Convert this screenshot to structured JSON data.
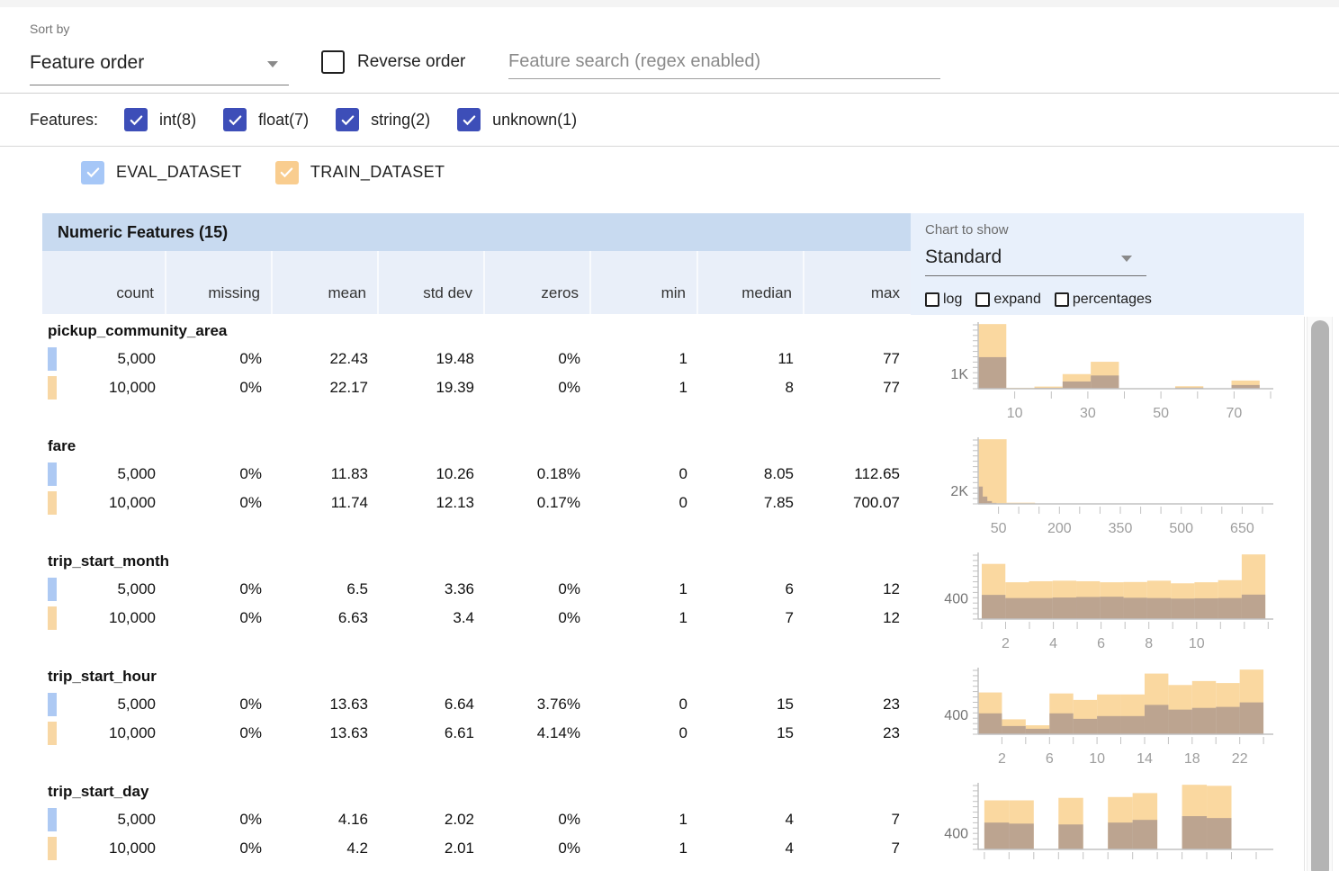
{
  "toolbar": {
    "sort_by_label": "Sort by",
    "sort_by_value": "Feature order",
    "reverse_order_label": "Reverse order",
    "search_placeholder": "Feature search (regex enabled)"
  },
  "features_filter": {
    "label": "Features:",
    "checkbox_color": "#3d4eb8",
    "checkboxes": [
      {
        "label": "int(8)",
        "checked": true
      },
      {
        "label": "float(7)",
        "checked": true
      },
      {
        "label": "string(2)",
        "checked": true
      },
      {
        "label": "unknown(1)",
        "checked": true
      }
    ]
  },
  "datasets": [
    {
      "name": "EVAL_DATASET",
      "checked": true,
      "checkbox_color": "#a6c7f7",
      "tab_color": "#adc9f3"
    },
    {
      "name": "TRAIN_DATASET",
      "checked": true,
      "checkbox_color": "#f9cd8f",
      "tab_color": "#f8d7a4"
    }
  ],
  "table": {
    "title": "Numeric Features (15)",
    "columns": [
      "count",
      "missing",
      "mean",
      "std dev",
      "zeros",
      "min",
      "median",
      "max"
    ],
    "features": [
      {
        "name": "pickup_community_area",
        "rows": [
          {
            "dataset": "EVAL_DATASET",
            "values": [
              "5,000",
              "0%",
              "22.43",
              "19.48",
              "0%",
              "1",
              "11",
              "77"
            ]
          },
          {
            "dataset": "TRAIN_DATASET",
            "values": [
              "10,000",
              "0%",
              "22.17",
              "19.39",
              "0%",
              "1",
              "8",
              "77"
            ]
          }
        ]
      },
      {
        "name": "fare",
        "rows": [
          {
            "dataset": "EVAL_DATASET",
            "values": [
              "5,000",
              "0%",
              "11.83",
              "10.26",
              "0.18%",
              "0",
              "8.05",
              "112.65"
            ]
          },
          {
            "dataset": "TRAIN_DATASET",
            "values": [
              "10,000",
              "0%",
              "11.74",
              "12.13",
              "0.17%",
              "0",
              "7.85",
              "700.07"
            ]
          }
        ]
      },
      {
        "name": "trip_start_month",
        "rows": [
          {
            "dataset": "EVAL_DATASET",
            "values": [
              "5,000",
              "0%",
              "6.5",
              "3.36",
              "0%",
              "1",
              "6",
              "12"
            ]
          },
          {
            "dataset": "TRAIN_DATASET",
            "values": [
              "10,000",
              "0%",
              "6.63",
              "3.4",
              "0%",
              "1",
              "7",
              "12"
            ]
          }
        ]
      },
      {
        "name": "trip_start_hour",
        "rows": [
          {
            "dataset": "EVAL_DATASET",
            "values": [
              "5,000",
              "0%",
              "13.63",
              "6.64",
              "3.76%",
              "0",
              "15",
              "23"
            ]
          },
          {
            "dataset": "TRAIN_DATASET",
            "values": [
              "10,000",
              "0%",
              "13.63",
              "6.61",
              "4.14%",
              "0",
              "15",
              "23"
            ]
          }
        ]
      },
      {
        "name": "trip_start_day",
        "rows": [
          {
            "dataset": "EVAL_DATASET",
            "values": [
              "5,000",
              "0%",
              "4.16",
              "2.02",
              "0%",
              "1",
              "4",
              "7"
            ]
          },
          {
            "dataset": "TRAIN_DATASET",
            "values": [
              "10,000",
              "0%",
              "4.2",
              "2.01",
              "0%",
              "1",
              "4",
              "7"
            ]
          }
        ]
      }
    ]
  },
  "chart_controls": {
    "label": "Chart to show",
    "value": "Standard",
    "options": [
      {
        "label": "log",
        "checked": false
      },
      {
        "label": "expand",
        "checked": false
      },
      {
        "label": "percentages",
        "checked": false
      }
    ]
  },
  "chart_data": [
    {
      "type": "histogram",
      "feature": "pickup_community_area",
      "x_range": [
        0,
        80
      ],
      "x_minor_start": 10,
      "x_minor_step": 10,
      "x_tick_labels": [
        10,
        30,
        50,
        70
      ],
      "y_axis_label": "1K",
      "y_label_value": 1000,
      "series": [
        {
          "name": "TRAIN_DATASET",
          "color": "#fad8a0",
          "bins": [
            [
              0,
              7.7,
              4200
            ],
            [
              7.7,
              15.4,
              60
            ],
            [
              15.4,
              23.1,
              140
            ],
            [
              23.1,
              30.8,
              950
            ],
            [
              30.8,
              38.5,
              1750
            ],
            [
              38.5,
              46.2,
              30
            ],
            [
              46.2,
              53.9,
              30
            ],
            [
              53.9,
              61.6,
              160
            ],
            [
              61.6,
              69.3,
              20
            ],
            [
              69.3,
              77,
              530
            ]
          ]
        },
        {
          "name": "EVAL_DATASET",
          "color": "rgba(113,103,125,0.45)",
          "bins": [
            [
              0,
              7.7,
              2050
            ],
            [
              7.7,
              15.4,
              25
            ],
            [
              15.4,
              23.1,
              60
            ],
            [
              23.1,
              30.8,
              470
            ],
            [
              30.8,
              38.5,
              860
            ],
            [
              38.5,
              46.2,
              12
            ],
            [
              46.2,
              53.9,
              12
            ],
            [
              53.9,
              61.6,
              70
            ],
            [
              61.6,
              69.3,
              8
            ],
            [
              69.3,
              77,
              240
            ]
          ]
        }
      ]
    },
    {
      "type": "histogram",
      "feature": "fare",
      "x_range": [
        0,
        720
      ],
      "x_minor_start": 50,
      "x_minor_step": 50,
      "x_tick_labels": [
        50,
        200,
        350,
        500,
        650
      ],
      "y_axis_label": "2K",
      "y_label_value": 2000,
      "series": [
        {
          "name": "TRAIN_DATASET",
          "color": "#fad8a0",
          "bins": [
            [
              0,
              70,
              9700
            ],
            [
              70,
              140,
              180
            ],
            [
              140,
              210,
              60
            ],
            [
              210,
              280,
              25
            ],
            [
              280,
              350,
              12
            ],
            [
              350,
              420,
              6
            ],
            [
              420,
              490,
              3
            ],
            [
              490,
              560,
              2
            ],
            [
              560,
              630,
              1
            ],
            [
              630,
              700,
              1
            ]
          ]
        },
        {
          "name": "EVAL_DATASET",
          "color": "rgba(113,103,125,0.45)",
          "bins": [
            [
              0,
              11.3,
              2600
            ],
            [
              11.3,
              22.6,
              1100
            ],
            [
              22.6,
              33.9,
              420
            ],
            [
              33.9,
              45.2,
              150
            ],
            [
              45.2,
              56.5,
              60
            ],
            [
              56.5,
              67.8,
              25
            ],
            [
              67.8,
              79.1,
              10
            ],
            [
              79.1,
              90.4,
              5
            ],
            [
              90.4,
              101.7,
              2
            ],
            [
              101.7,
              113,
              1
            ]
          ]
        }
      ]
    },
    {
      "type": "histogram",
      "feature": "trip_start_month",
      "x_range": [
        0.85,
        13.1
      ],
      "x_minor_start": 1,
      "x_minor_step": 1,
      "x_tick_labels": [
        2,
        4,
        6,
        8,
        10
      ],
      "y_axis_label": "400",
      "y_label_value": 400,
      "series": [
        {
          "name": "TRAIN_DATASET",
          "color": "#fad8a0",
          "bins": [
            [
              1,
              1.99,
              1050
            ],
            [
              1.99,
              2.98,
              700
            ],
            [
              2.98,
              3.97,
              720
            ],
            [
              3.97,
              4.96,
              730
            ],
            [
              4.96,
              5.95,
              720
            ],
            [
              5.95,
              6.94,
              700
            ],
            [
              6.94,
              7.93,
              705
            ],
            [
              7.93,
              8.92,
              730
            ],
            [
              8.92,
              9.91,
              680
            ],
            [
              9.91,
              10.9,
              700
            ],
            [
              10.9,
              11.89,
              740
            ],
            [
              11.89,
              12.88,
              1230
            ]
          ]
        },
        {
          "name": "EVAL_DATASET",
          "color": "rgba(113,103,125,0.45)",
          "bins": [
            [
              1,
              1.99,
              460
            ],
            [
              1.99,
              2.98,
              400
            ],
            [
              2.98,
              3.97,
              400
            ],
            [
              3.97,
              4.96,
              410
            ],
            [
              4.96,
              5.95,
              420
            ],
            [
              5.95,
              6.94,
              425
            ],
            [
              6.94,
              7.93,
              405
            ],
            [
              7.93,
              8.92,
              400
            ],
            [
              8.92,
              9.91,
              390
            ],
            [
              9.91,
              10.9,
              395
            ],
            [
              10.9,
              11.89,
              400
            ],
            [
              11.89,
              12.88,
              465
            ]
          ]
        }
      ]
    },
    {
      "type": "histogram",
      "feature": "trip_start_hour",
      "x_range": [
        0,
        24.6
      ],
      "x_minor_start": 2,
      "x_minor_step": 2,
      "x_tick_labels": [
        2,
        6,
        10,
        14,
        18,
        22
      ],
      "y_axis_label": "400",
      "y_label_value": 400,
      "series": [
        {
          "name": "TRAIN_DATASET",
          "color": "#fad8a0",
          "bins": [
            [
              0,
              2,
              840
            ],
            [
              2,
              4,
              300
            ],
            [
              4,
              6,
              180
            ],
            [
              6,
              8,
              820
            ],
            [
              8,
              10,
              690
            ],
            [
              10,
              12,
              800
            ],
            [
              12,
              14,
              800
            ],
            [
              14,
              16,
              1220
            ],
            [
              16,
              18,
              990
            ],
            [
              18,
              20,
              1070
            ],
            [
              20,
              22,
              1030
            ],
            [
              22,
              24,
              1300
            ]
          ]
        },
        {
          "name": "EVAL_DATASET",
          "color": "rgba(113,103,125,0.45)",
          "bins": [
            [
              0,
              2,
              420
            ],
            [
              2,
              4,
              165
            ],
            [
              4,
              6,
              110
            ],
            [
              6,
              8,
              420
            ],
            [
              8,
              10,
              310
            ],
            [
              10,
              12,
              365
            ],
            [
              12,
              14,
              365
            ],
            [
              14,
              16,
              590
            ],
            [
              16,
              18,
              495
            ],
            [
              18,
              20,
              530
            ],
            [
              20,
              22,
              550
            ],
            [
              22,
              24,
              640
            ]
          ]
        }
      ]
    },
    {
      "type": "histogram",
      "feature": "trip_start_day",
      "x_range": [
        0.85,
        7.95
      ],
      "x_minor_start": 1,
      "x_minor_step": 0.6,
      "x_tick_labels": [],
      "y_axis_label": "400",
      "y_label_value": 400,
      "series": [
        {
          "name": "TRAIN_DATASET",
          "color": "#fad8a0",
          "bins": [
            [
              1,
              1.6,
              1180
            ],
            [
              1.6,
              2.2,
              1180
            ],
            [
              2.8,
              3.4,
              1240
            ],
            [
              4,
              4.6,
              1260
            ],
            [
              4.6,
              5.2,
              1355
            ],
            [
              5.8,
              6.4,
              1555
            ],
            [
              6.4,
              7,
              1530
            ]
          ]
        },
        {
          "name": "EVAL_DATASET",
          "color": "rgba(113,103,125,0.45)",
          "bins": [
            [
              1,
              1.6,
              645
            ],
            [
              1.6,
              2.2,
              620
            ],
            [
              2.8,
              3.4,
              600
            ],
            [
              4,
              4.6,
              645
            ],
            [
              4.6,
              5.2,
              710
            ],
            [
              5.8,
              6.4,
              800
            ],
            [
              6.4,
              7,
              755
            ]
          ]
        }
      ]
    }
  ]
}
